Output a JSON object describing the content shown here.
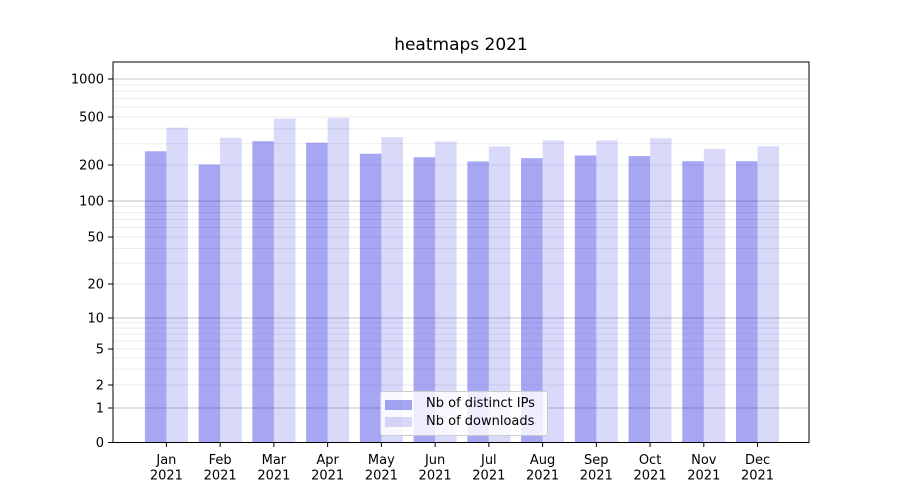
{
  "chart_data": {
    "type": "bar",
    "title": "heatmaps 2021",
    "categories": [
      "Jan",
      "Feb",
      "Mar",
      "Apr",
      "May",
      "Jun",
      "Jul",
      "Aug",
      "Sep",
      "Oct",
      "Nov",
      "Dec"
    ],
    "year_label": "2021",
    "series": [
      {
        "name": "Nb of distinct IPs",
        "color": "rgba(0,0,221,0.35)",
        "values": [
          260,
          202,
          315,
          306,
          248,
          232,
          214,
          228,
          240,
          237,
          215,
          215
        ]
      },
      {
        "name": "Nb of downloads",
        "color": "rgba(0,0,221,0.15)",
        "values": [
          408,
          336,
          485,
          492,
          340,
          313,
          285,
          319,
          319,
          333,
          272,
          286
        ]
      }
    ],
    "yaxis": {
      "scale": "symlog",
      "ticks": [
        0,
        1,
        2,
        5,
        10,
        20,
        50,
        100,
        200,
        500,
        1000
      ],
      "major_gridlines": [
        1,
        10,
        100,
        1000
      ],
      "minor_gridlines": [
        2,
        3,
        4,
        5,
        6,
        7,
        8,
        9,
        20,
        30,
        40,
        50,
        60,
        70,
        80,
        90,
        200,
        300,
        400,
        500,
        600,
        700,
        800,
        900
      ],
      "ylim": [
        0,
        1400
      ]
    },
    "xlabel": "",
    "ylabel": "",
    "grid": true,
    "legend": {
      "position": "lower center",
      "labels": [
        "Nb of distinct IPs",
        "Nb of downloads"
      ]
    },
    "colors": {
      "major_grid": "#c6c6c6",
      "minor_grid": "#ebebeb",
      "axis": "#000000",
      "text": "#000000"
    }
  }
}
